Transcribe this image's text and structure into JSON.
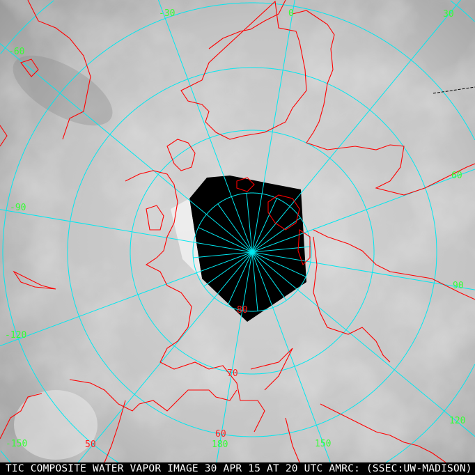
{
  "caption": "TIC COMPOSITE WATER VAPOR IMAGE 30 APR 15 AT 20 UTC AMRC: (SSEC:UW-MADISON)",
  "projection": "polar-stereographic-north",
  "colors": {
    "grid": "#00e8f0",
    "coastline": "#ff0000",
    "longitude_label": "#33ff33",
    "latitude_label": "#ff2020",
    "no_data": "#000000",
    "caption_text": "#ffffff"
  },
  "longitude_labels": [
    "-30",
    "0",
    "30",
    "60",
    "90",
    "120",
    "150",
    "180",
    "-150",
    "-120",
    "-90",
    "-60"
  ],
  "latitude_labels": [
    "80",
    "70",
    "60",
    "50"
  ]
}
